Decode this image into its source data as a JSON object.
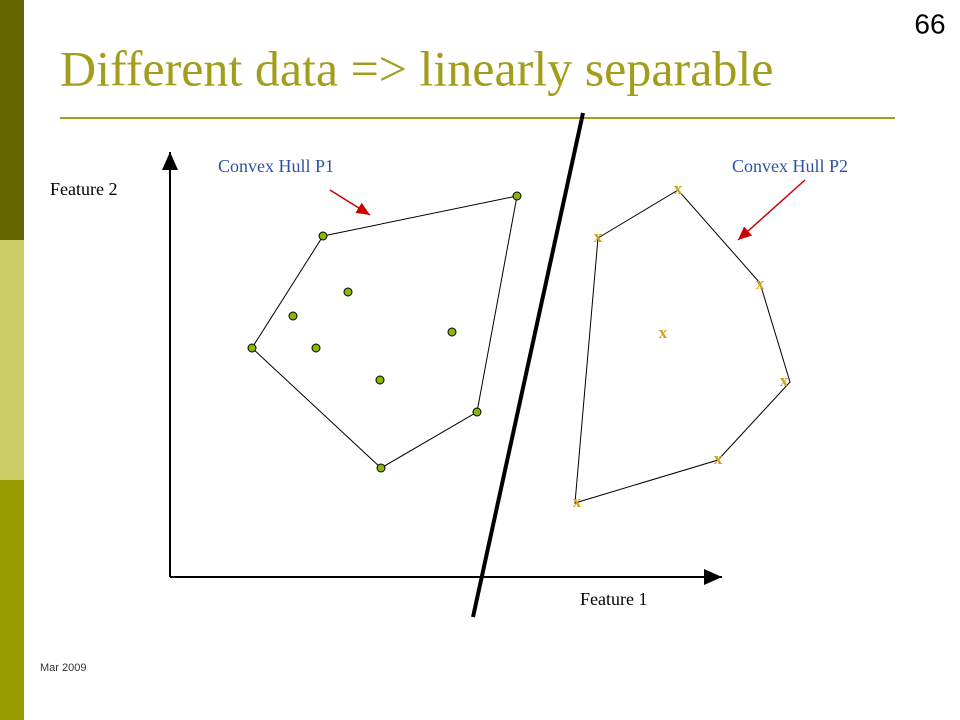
{
  "slide_number": "66",
  "title": "Different data => linearly separable",
  "labels": {
    "y_axis": "Feature 2",
    "x_axis": "Feature 1",
    "hull_p1": "Convex Hull P1",
    "hull_p2": "Convex Hull P2"
  },
  "class2_marker": "x",
  "footer": "Mar 2009"
}
